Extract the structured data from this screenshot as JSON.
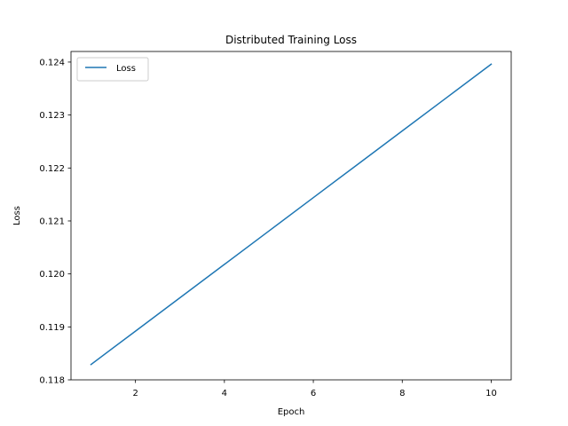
{
  "chart_data": {
    "type": "line",
    "title": "Distributed Training Loss",
    "xlabel": "Epoch",
    "ylabel": "Loss",
    "x": [
      1,
      2,
      3,
      4,
      5,
      6,
      7,
      8,
      9,
      10
    ],
    "series": [
      {
        "name": "Loss",
        "color": "#1f77b4",
        "values": [
          0.11829,
          0.11892,
          0.11955,
          0.12018,
          0.12081,
          0.12144,
          0.12207,
          0.1227,
          0.12333,
          0.12396
        ]
      }
    ],
    "xlim": [
      0.55,
      10.45
    ],
    "ylim": [
      0.118,
      0.1242
    ],
    "xticks": [
      2,
      4,
      6,
      8,
      10
    ],
    "xtick_labels": [
      "2",
      "4",
      "6",
      "8",
      "10"
    ],
    "yticks": [
      0.118,
      0.119,
      0.12,
      0.121,
      0.122,
      0.123,
      0.124
    ],
    "ytick_labels": [
      "0.118",
      "0.119",
      "0.120",
      "0.121",
      "0.122",
      "0.123",
      "0.124"
    ],
    "grid": false,
    "legend_position": "upper-left"
  }
}
